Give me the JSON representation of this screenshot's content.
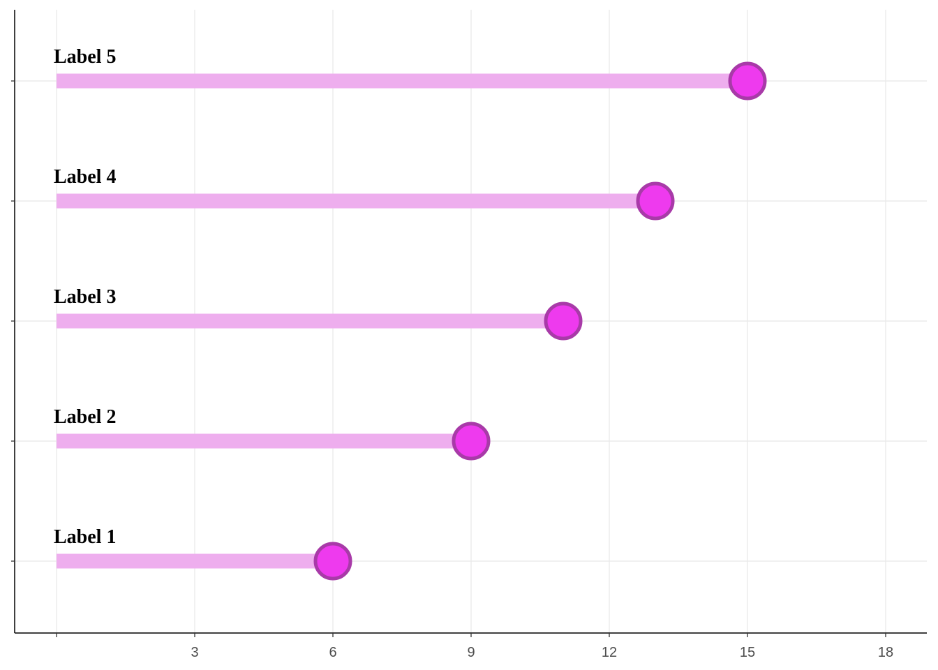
{
  "chart_data": {
    "type": "lollipop",
    "orientation": "horizontal",
    "categories": [
      "Label 1",
      "Label 2",
      "Label 3",
      "Label 4",
      "Label 5"
    ],
    "values": [
      6,
      9,
      11,
      13,
      15
    ],
    "title": "",
    "xlabel": "",
    "ylabel": "",
    "xlim": [
      -0.9,
      18.9
    ],
    "xticks": [
      0,
      3,
      6,
      9,
      12,
      15,
      18
    ],
    "xtick_labels": [
      "",
      "3",
      "6",
      "9",
      "12",
      "15",
      "18"
    ],
    "grid": true,
    "legend": "none",
    "colors": {
      "stem": "#eeaeee",
      "point_fill": "#ee3aee",
      "point_outline": "#a83aa8",
      "grid": "#ebebeb",
      "axis": "#000000",
      "tick_text": "#4d4d4d"
    }
  }
}
